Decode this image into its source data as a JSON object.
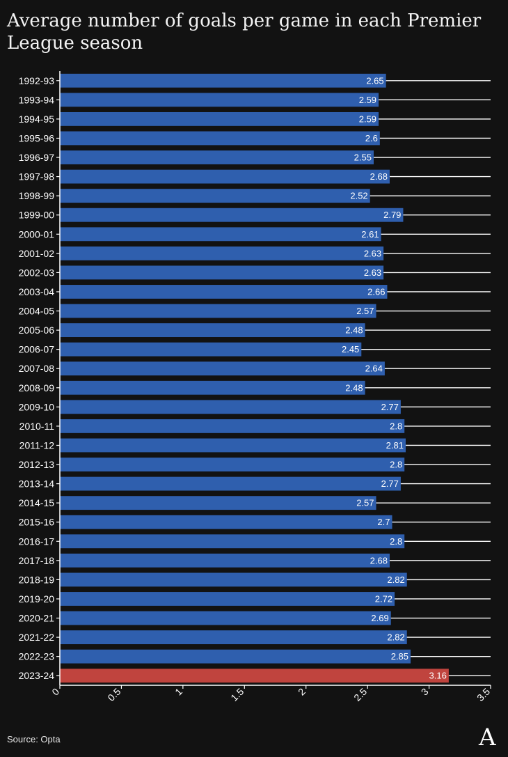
{
  "title": "Average number of goals per game in each Premier League season",
  "source": "Source: Opta",
  "logo": "A",
  "colors": {
    "bar": "#2f5fae",
    "highlight": "#c0443e",
    "background": "#121212",
    "text": "#ffffff"
  },
  "chart_data": {
    "type": "bar",
    "orientation": "horizontal",
    "title": "Average number of goals per game in each Premier League season",
    "xlabel": "",
    "ylabel": "",
    "xlim": [
      0,
      3.5
    ],
    "xticks": [
      "0",
      "0.5",
      "1",
      "1.5",
      "2",
      "2.5",
      "3",
      "3.5"
    ],
    "grid": "horizontal lines per category",
    "highlight_category": "2023-24",
    "categories": [
      "1992-93",
      "1993-94",
      "1994-95",
      "1995-96",
      "1996-97",
      "1997-98",
      "1998-99",
      "1999-00",
      "2000-01",
      "2001-02",
      "2002-03",
      "2003-04",
      "2004-05",
      "2005-06",
      "2006-07",
      "2007-08",
      "2008-09",
      "2009-10",
      "2010-11",
      "2011-12",
      "2012-13",
      "2013-14",
      "2014-15",
      "2015-16",
      "2016-17",
      "2017-18",
      "2018-19",
      "2019-20",
      "2020-21",
      "2021-22",
      "2022-23",
      "2023-24"
    ],
    "values": [
      2.65,
      2.59,
      2.59,
      2.6,
      2.55,
      2.68,
      2.52,
      2.79,
      2.61,
      2.63,
      2.63,
      2.66,
      2.57,
      2.48,
      2.45,
      2.64,
      2.48,
      2.77,
      2.8,
      2.81,
      2.8,
      2.77,
      2.57,
      2.7,
      2.8,
      2.68,
      2.82,
      2.72,
      2.69,
      2.82,
      2.85,
      3.16
    ],
    "labels": [
      "2.65",
      "2.59",
      "2.59",
      "2.6",
      "2.55",
      "2.68",
      "2.52",
      "2.79",
      "2.61",
      "2.63",
      "2.63",
      "2.66",
      "2.57",
      "2.48",
      "2.45",
      "2.64",
      "2.48",
      "2.77",
      "2.8",
      "2.81",
      "2.8",
      "2.77",
      "2.57",
      "2.7",
      "2.8",
      "2.68",
      "2.82",
      "2.72",
      "2.69",
      "2.82",
      "2.85",
      "3.16"
    ]
  }
}
